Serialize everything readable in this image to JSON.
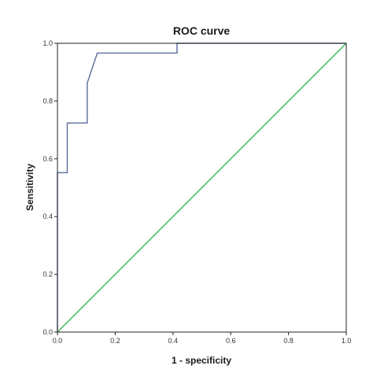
{
  "chart_data": {
    "type": "line",
    "title": "ROC curve",
    "xlabel": "1 - specificity",
    "ylabel": "Sensitivity",
    "xlim": [
      0,
      1
    ],
    "ylim": [
      0,
      1
    ],
    "x_ticks": [
      "0.0",
      "0.2",
      "0.4",
      "0.6",
      "0.8",
      "1.0"
    ],
    "y_ticks": [
      "0.0",
      "0.2",
      "0.4",
      "0.6",
      "0.8",
      "1.0"
    ],
    "grid": false,
    "legend": "none",
    "series": [
      {
        "color": "#5a6d9a",
        "points": [
          [
            0.0,
            0.0
          ],
          [
            0.0,
            0.552
          ],
          [
            0.034,
            0.552
          ],
          [
            0.034,
            0.724
          ],
          [
            0.103,
            0.724
          ],
          [
            0.103,
            0.862
          ],
          [
            0.138,
            0.966
          ],
          [
            0.414,
            0.966
          ],
          [
            0.414,
            1.0
          ],
          [
            1.0,
            1.0
          ]
        ]
      },
      {
        "color": "#3fb34f",
        "points": [
          [
            0.0,
            0.0
          ],
          [
            1.0,
            1.0
          ]
        ]
      }
    ]
  }
}
